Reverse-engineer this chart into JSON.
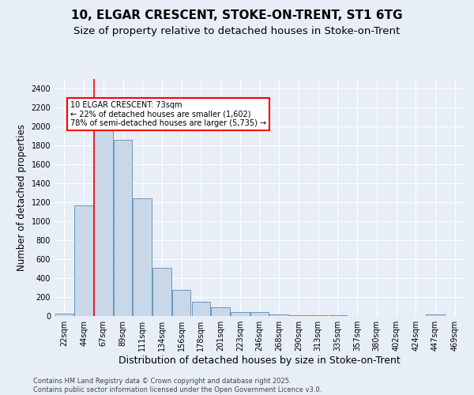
{
  "title_line1": "10, ELGAR CRESCENT, STOKE-ON-TRENT, ST1 6TG",
  "title_line2": "Size of property relative to detached houses in Stoke-on-Trent",
  "xlabel": "Distribution of detached houses by size in Stoke-on-Trent",
  "ylabel": "Number of detached properties",
  "bin_labels": [
    "22sqm",
    "44sqm",
    "67sqm",
    "89sqm",
    "111sqm",
    "134sqm",
    "156sqm",
    "178sqm",
    "201sqm",
    "223sqm",
    "246sqm",
    "268sqm",
    "290sqm",
    "313sqm",
    "335sqm",
    "357sqm",
    "380sqm",
    "402sqm",
    "424sqm",
    "447sqm",
    "469sqm"
  ],
  "bar_values": [
    25,
    1170,
    2000,
    1860,
    1240,
    510,
    275,
    150,
    92,
    40,
    40,
    18,
    12,
    8,
    5,
    3,
    3,
    2,
    2,
    20,
    2
  ],
  "bar_color": "#c8d8e8",
  "bar_edge_color": "#5a8ab5",
  "vline_color": "red",
  "vline_bin_index": 2,
  "annotation_text": "10 ELGAR CRESCENT: 73sqm\n← 22% of detached houses are smaller (1,602)\n78% of semi-detached houses are larger (5,735) →",
  "annotation_box_color": "white",
  "annotation_box_edge": "red",
  "ylim": [
    0,
    2500
  ],
  "yticks": [
    0,
    200,
    400,
    600,
    800,
    1000,
    1200,
    1400,
    1600,
    1800,
    2000,
    2200,
    2400
  ],
  "background_color": "#e8eef8",
  "plot_bg_color": "#e8eef8",
  "footer_text": "Contains HM Land Registry data © Crown copyright and database right 2025.\nContains public sector information licensed under the Open Government Licence v3.0.",
  "title_fontsize": 11,
  "subtitle_fontsize": 9.5,
  "tick_fontsize": 7,
  "xlabel_fontsize": 9,
  "ylabel_fontsize": 8.5,
  "annotation_fontsize": 7,
  "footer_fontsize": 6
}
